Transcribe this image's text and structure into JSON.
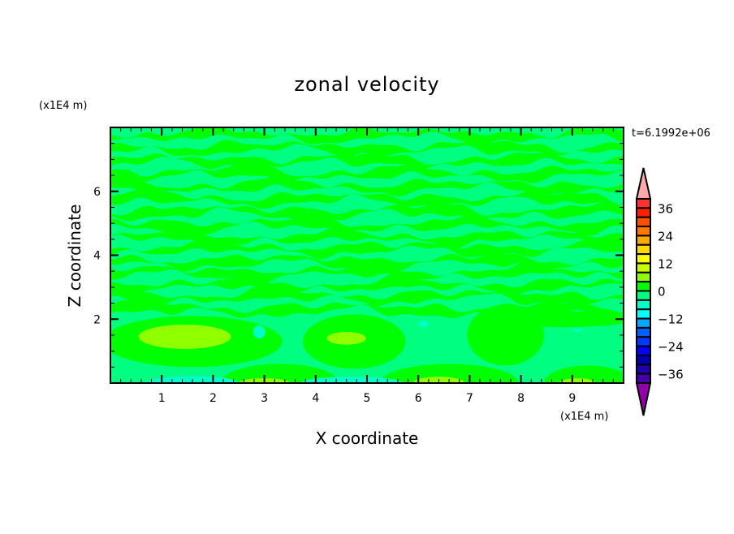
{
  "chart_data": {
    "type": "heatmap",
    "subtype": "filled-contour",
    "title": "zonal velocity",
    "xlabel": "X coordinate",
    "ylabel": "Z coordinate",
    "x_unit": "(x1E4 m)",
    "y_unit": "(x1E4 m)",
    "time_label": "t=6.1992e+06",
    "xlim": [
      0,
      10
    ],
    "ylim": [
      0,
      8
    ],
    "x_ticks": [
      1,
      2,
      3,
      4,
      5,
      6,
      7,
      8,
      9
    ],
    "y_ticks": [
      2,
      4,
      6
    ],
    "colorbar": {
      "levels_min": -40,
      "levels_max": 40,
      "level_step": 4,
      "tick_labels": [
        "36",
        "24",
        "12",
        "0",
        "-12",
        "-24",
        "-36"
      ],
      "tick_values": [
        36,
        24,
        12,
        0,
        -12,
        -24,
        -36
      ],
      "colors_top_to_bottom": [
        "#ff3232",
        "#ff2000",
        "#ff5000",
        "#ff7800",
        "#ffa800",
        "#ffd800",
        "#ffff00",
        "#c8ff00",
        "#90ff00",
        "#00ff00",
        "#00ff80",
        "#00ffc8",
        "#00ffff",
        "#00a8ff",
        "#0060ff",
        "#0038ff",
        "#0000ff",
        "#0000b0",
        "#2000a8",
        "#4800a8"
      ],
      "over_color": "#ffaaaa",
      "under_color": "#9000a8"
    },
    "background_value": -2,
    "upper_bands": {
      "value": 2,
      "z_centers": [
        2.3,
        2.7,
        3.05,
        3.45,
        3.8,
        4.2,
        4.55,
        4.95,
        5.35,
        5.75,
        6.15,
        6.55,
        6.95,
        7.35,
        7.75
      ]
    },
    "features": [
      {
        "cx": 1.6,
        "cz": 1.3,
        "rx": 1.75,
        "rz": 0.8,
        "value": 2
      },
      {
        "cx": 1.45,
        "cz": 1.45,
        "rx": 0.9,
        "rz": 0.38,
        "value": 6
      },
      {
        "cx": 4.75,
        "cz": 1.3,
        "rx": 1.0,
        "rz": 0.85,
        "value": 2
      },
      {
        "cx": 4.6,
        "cz": 1.4,
        "rx": 0.38,
        "rz": 0.2,
        "value": 6
      },
      {
        "cx": 7.7,
        "cz": 1.5,
        "rx": 0.75,
        "rz": 0.95,
        "value": 2
      },
      {
        "cx": 8.8,
        "cz": 2.0,
        "rx": 1.4,
        "rz": 0.25,
        "value": 2
      },
      {
        "cx": 3.3,
        "cz": 0.0,
        "rx": 1.15,
        "rz": 0.6,
        "value": 2
      },
      {
        "cx": 3.0,
        "cz": 0.0,
        "rx": 0.5,
        "rz": 0.15,
        "value": 6
      },
      {
        "cx": 6.6,
        "cz": 0.0,
        "rx": 1.35,
        "rz": 0.6,
        "value": 2
      },
      {
        "cx": 6.4,
        "cz": 0.0,
        "rx": 0.5,
        "rz": 0.2,
        "value": 6
      },
      {
        "cx": 9.3,
        "cz": 0.0,
        "rx": 0.85,
        "rz": 0.55,
        "value": 2
      },
      {
        "cx": 9.1,
        "cz": 0.0,
        "rx": 0.35,
        "rz": 0.15,
        "value": 6
      },
      {
        "cx": 1.6,
        "cz": 0.0,
        "rx": 0.9,
        "rz": 0.22,
        "value": -6
      },
      {
        "cx": 4.7,
        "cz": 0.0,
        "rx": 1.0,
        "rz": 0.2,
        "value": -6
      },
      {
        "cx": 2.9,
        "cz": 1.6,
        "rx": 0.12,
        "rz": 0.2,
        "value": -6
      },
      {
        "cx": 6.1,
        "cz": 1.85,
        "rx": 0.1,
        "rz": 0.1,
        "value": -6
      },
      {
        "cx": 9.1,
        "cz": 1.65,
        "rx": 0.1,
        "rz": 0.05,
        "value": -6
      }
    ]
  }
}
